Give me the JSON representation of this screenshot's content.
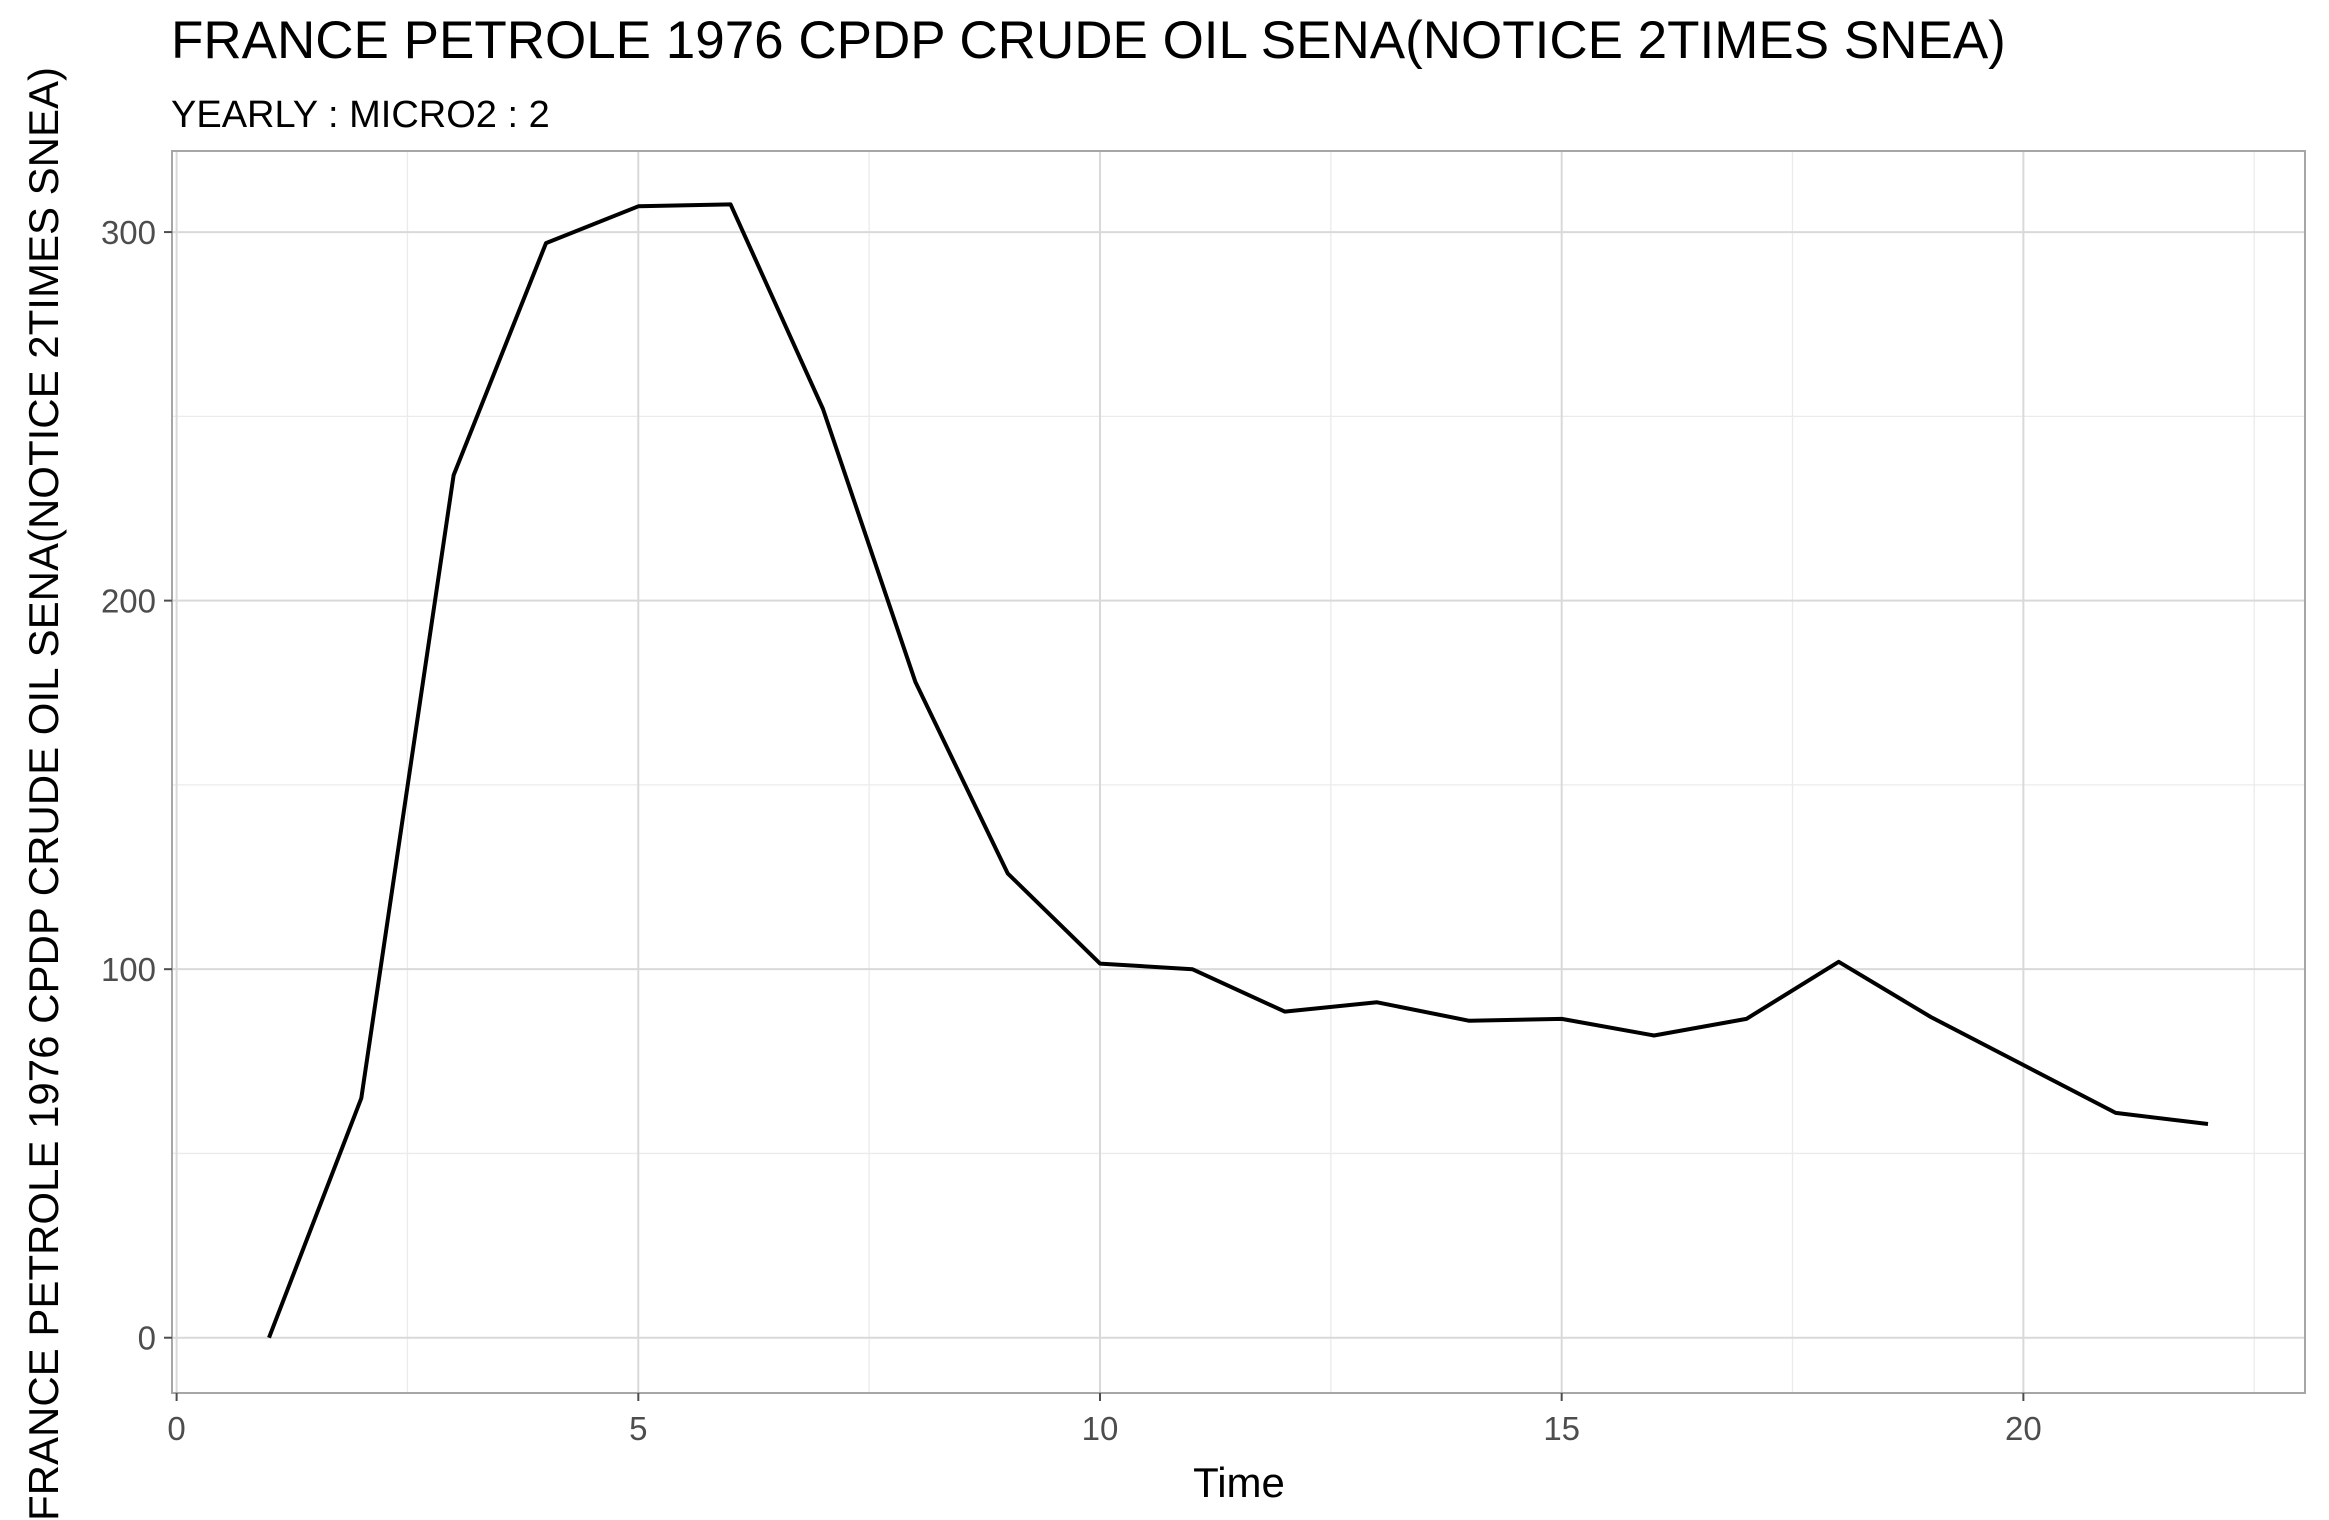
{
  "chart_data": {
    "type": "line",
    "title": "FRANCE PETROLE 1976 CPDP CRUDE OIL SENA(NOTICE 2TIMES SNEA)",
    "subtitle": "YEARLY : MICRO2 : 2",
    "xlabel": "Time",
    "ylabel": "FRANCE PETROLE 1976 CPDP CRUDE OIL SENA(NOTICE 2TIMES SNEA)",
    "xlim": [
      -0.05,
      23.05
    ],
    "ylim": [
      -15,
      322
    ],
    "x_ticks": [
      0,
      5,
      10,
      15,
      20
    ],
    "y_ticks": [
      0,
      100,
      200,
      300
    ],
    "x_minor_ticks": [
      2.5,
      7.5,
      12.5,
      17.5,
      22.5
    ],
    "y_minor_ticks": [
      50,
      150,
      250
    ],
    "grid": true,
    "line_color": "#000000",
    "series": [
      {
        "x": [
          1,
          2,
          3,
          4,
          5,
          6,
          7,
          8,
          9,
          10,
          11,
          12,
          13,
          14,
          15,
          16,
          17,
          18,
          19,
          20,
          21,
          22
        ],
        "values": [
          0,
          65,
          234,
          297,
          307,
          307.5,
          252,
          178,
          126,
          101.5,
          100,
          88.5,
          91,
          86,
          86.5,
          82,
          86.5,
          102,
          87,
          74,
          61,
          58
        ]
      }
    ]
  }
}
